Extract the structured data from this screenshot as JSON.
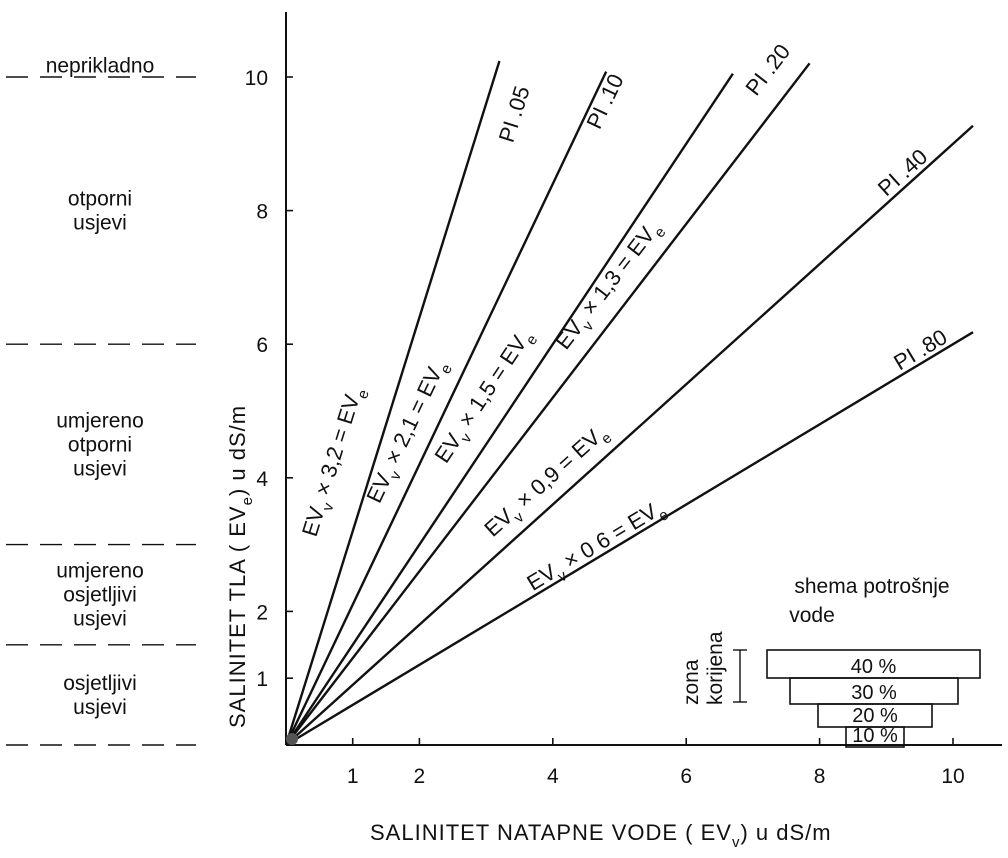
{
  "chart_data": {
    "type": "line",
    "xlabel": "SALINITET NATAPNE VODE ( EV",
    "xlabel_sub": "v",
    "xlabel_unit": ")  u dS/m",
    "ylabel": "SALINITET TLA ( EV",
    "ylabel_sub": "e",
    "ylabel_unit": ")  u dS/m",
    "xlim": [
      0,
      10.5
    ],
    "ylim": [
      0,
      10.5
    ],
    "x_ticks": [
      {
        "value": 1,
        "label": "1"
      },
      {
        "value": 2,
        "label": "2"
      },
      {
        "value": 4,
        "label": "4"
      },
      {
        "value": 6,
        "label": "6"
      },
      {
        "value": 8,
        "label": "8"
      },
      {
        "value": 10,
        "label": "10"
      }
    ],
    "y_ticks": [
      {
        "value": 1,
        "label": "1"
      },
      {
        "value": 2,
        "label": "2"
      },
      {
        "value": 4,
        "label": "4"
      },
      {
        "value": 6,
        "label": "6"
      },
      {
        "value": 8,
        "label": "8"
      },
      {
        "value": 10,
        "label": "10"
      }
    ],
    "series": [
      {
        "pi": "PI .05",
        "factor": 3.2,
        "eq_main": "EV",
        "eq_sub": "v",
        "eq_rest": " × 3,2 = EV",
        "eq_sub2": "e",
        "x_end": 3.2
      },
      {
        "pi": "PI .10",
        "factor": 2.1,
        "eq_main": "EV",
        "eq_sub": "v",
        "eq_rest": " × 2,1 = EV",
        "eq_sub2": "e",
        "x_end": 4.8
      },
      {
        "pi": "PI .20",
        "factor": 1.5,
        "eq_main": "EV",
        "eq_sub": "v",
        "eq_rest": " × 1,5 = EV",
        "eq_sub2": "e",
        "x_end": 6.7
      },
      {
        "pi": "PI .20",
        "factor": 1.3,
        "eq_main": "EV",
        "eq_sub": "v",
        "eq_rest": " × 1,3 = EV",
        "eq_sub2": "e",
        "x_end": 7.85
      },
      {
        "pi": "PI  .40",
        "factor": 0.9,
        "eq_main": "EV",
        "eq_sub": "v",
        "eq_rest": " × 0,9 = EV",
        "eq_sub2": "e",
        "x_end": 10.3
      },
      {
        "pi": "PI .80",
        "factor": 0.6,
        "eq_main": "EV",
        "eq_sub": "v",
        "eq_rest": " × 0 6 = EV",
        "eq_sub2": "e",
        "x_end": 10.3
      }
    ],
    "tolerance_zones": [
      {
        "lines": [
          "neprikladno"
        ],
        "from": 10,
        "to": 10.5,
        "underline": true
      },
      {
        "lines": [
          "otporni",
          "usjevi"
        ],
        "from": 6,
        "to": 10
      },
      {
        "lines": [
          "umjereno",
          "otporni",
          "usjevi"
        ],
        "from": 3,
        "to": 6
      },
      {
        "lines": [
          "umjereno",
          "osjetljivi",
          "usjevi"
        ],
        "from": 1.5,
        "to": 3
      },
      {
        "lines": [
          "osjetljivi",
          "usjevi"
        ],
        "from": 0,
        "to": 1.5
      }
    ],
    "zone_boundaries": [
      10,
      6,
      3,
      1.5,
      0
    ],
    "water_use_scheme": {
      "title_line1": "shema potrošnje",
      "title_line2": "vode",
      "side_label1": "zona",
      "side_label2": "korijena",
      "layers": [
        "40 %",
        "30 %",
        "20 %",
        "10 %"
      ]
    }
  }
}
